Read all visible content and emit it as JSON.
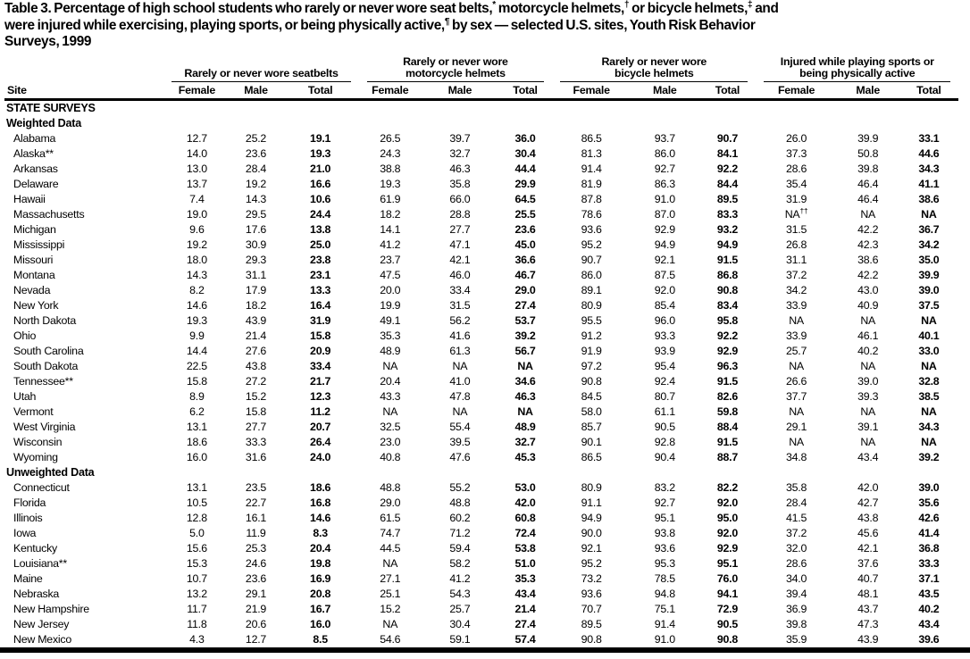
{
  "page": {
    "title_segments": [
      {
        "text": "Table 3. Percentage of high school students who rarely or never wore seat belts,"
      },
      {
        "sup": "*"
      },
      {
        "text": " motorcycle helmets,"
      },
      {
        "sup": "†"
      },
      {
        "text": " or bicycle helmets,"
      },
      {
        "sup": "‡"
      },
      {
        "text": " and"
      },
      {
        "br": true
      },
      {
        "text": "were injured while exercising, playing sports, or being physically active,"
      },
      {
        "sup": "¶"
      },
      {
        "text": " by sex — selected U.S. sites, Youth Risk Behavior"
      },
      {
        "br": true
      },
      {
        "text": "Surveys, 1999"
      }
    ]
  },
  "table": {
    "site_header": "Site",
    "column_groups": [
      {
        "lines": [
          "Rarely or never wore seatbelts"
        ]
      },
      {
        "lines": [
          "Rarely or never wore",
          "motorcycle helmets"
        ]
      },
      {
        "lines": [
          "Rarely or never wore",
          "bicycle helmets"
        ]
      },
      {
        "lines": [
          "Injured while playing sports or",
          "being physically active"
        ]
      }
    ],
    "sub_headers": [
      "Female",
      "Male",
      "Total"
    ],
    "rows": [
      {
        "type": "section",
        "label": "STATE SURVEYS"
      },
      {
        "type": "section",
        "label": "Weighted Data"
      },
      {
        "type": "data",
        "site": "Alabama",
        "values": [
          "12.7",
          "25.2",
          "19.1",
          "26.5",
          "39.7",
          "36.0",
          "86.5",
          "93.7",
          "90.7",
          "26.0",
          "39.9",
          "33.1"
        ]
      },
      {
        "type": "data",
        "site": "Alaska**",
        "values": [
          "14.0",
          "23.6",
          "19.3",
          "24.3",
          "32.7",
          "30.4",
          "81.3",
          "86.0",
          "84.1",
          "37.3",
          "50.8",
          "44.6"
        ]
      },
      {
        "type": "data",
        "site": "Arkansas",
        "values": [
          "13.0",
          "28.4",
          "21.0",
          "38.8",
          "46.3",
          "44.4",
          "91.4",
          "92.7",
          "92.2",
          "28.6",
          "39.8",
          "34.3"
        ]
      },
      {
        "type": "data",
        "site": "Delaware",
        "values": [
          "13.7",
          "19.2",
          "16.6",
          "19.3",
          "35.8",
          "29.9",
          "81.9",
          "86.3",
          "84.4",
          "35.4",
          "46.4",
          "41.1"
        ]
      },
      {
        "type": "data",
        "site": "Hawaii",
        "values": [
          "7.4",
          "14.3",
          "10.6",
          "61.9",
          "66.0",
          "64.5",
          "87.8",
          "91.0",
          "89.5",
          "31.9",
          "46.4",
          "38.6"
        ]
      },
      {
        "type": "data",
        "site": "Massachusetts",
        "values": [
          "19.0",
          "29.5",
          "24.4",
          "18.2",
          "28.8",
          "25.5",
          "78.6",
          "87.0",
          "83.3",
          "NA††",
          "NA",
          "NA"
        ]
      },
      {
        "type": "data",
        "site": "Michigan",
        "values": [
          "9.6",
          "17.6",
          "13.8",
          "14.1",
          "27.7",
          "23.6",
          "93.6",
          "92.9",
          "93.2",
          "31.5",
          "42.2",
          "36.7"
        ]
      },
      {
        "type": "data",
        "site": "Mississippi",
        "values": [
          "19.2",
          "30.9",
          "25.0",
          "41.2",
          "47.1",
          "45.0",
          "95.2",
          "94.9",
          "94.9",
          "26.8",
          "42.3",
          "34.2"
        ]
      },
      {
        "type": "data",
        "site": "Missouri",
        "values": [
          "18.0",
          "29.3",
          "23.8",
          "23.7",
          "42.1",
          "36.6",
          "90.7",
          "92.1",
          "91.5",
          "31.1",
          "38.6",
          "35.0"
        ]
      },
      {
        "type": "data",
        "site": "Montana",
        "values": [
          "14.3",
          "31.1",
          "23.1",
          "47.5",
          "46.0",
          "46.7",
          "86.0",
          "87.5",
          "86.8",
          "37.2",
          "42.2",
          "39.9"
        ]
      },
      {
        "type": "data",
        "site": "Nevada",
        "values": [
          "8.2",
          "17.9",
          "13.3",
          "20.0",
          "33.4",
          "29.0",
          "89.1",
          "92.0",
          "90.8",
          "34.2",
          "43.0",
          "39.0"
        ]
      },
      {
        "type": "data",
        "site": "New York",
        "values": [
          "14.6",
          "18.2",
          "16.4",
          "19.9",
          "31.5",
          "27.4",
          "80.9",
          "85.4",
          "83.4",
          "33.9",
          "40.9",
          "37.5"
        ]
      },
      {
        "type": "data",
        "site": "North Dakota",
        "values": [
          "19.3",
          "43.9",
          "31.9",
          "49.1",
          "56.2",
          "53.7",
          "95.5",
          "96.0",
          "95.8",
          "NA",
          "NA",
          "NA"
        ]
      },
      {
        "type": "data",
        "site": "Ohio",
        "values": [
          "9.9",
          "21.4",
          "15.8",
          "35.3",
          "41.6",
          "39.2",
          "91.2",
          "93.3",
          "92.2",
          "33.9",
          "46.1",
          "40.1"
        ]
      },
      {
        "type": "data",
        "site": "South Carolina",
        "values": [
          "14.4",
          "27.6",
          "20.9",
          "48.9",
          "61.3",
          "56.7",
          "91.9",
          "93.9",
          "92.9",
          "25.7",
          "40.2",
          "33.0"
        ]
      },
      {
        "type": "data",
        "site": "South Dakota",
        "values": [
          "22.5",
          "43.8",
          "33.4",
          "NA",
          "NA",
          "NA",
          "97.2",
          "95.4",
          "96.3",
          "NA",
          "NA",
          "NA"
        ]
      },
      {
        "type": "data",
        "site": "Tennessee**",
        "values": [
          "15.8",
          "27.2",
          "21.7",
          "20.4",
          "41.0",
          "34.6",
          "90.8",
          "92.4",
          "91.5",
          "26.6",
          "39.0",
          "32.8"
        ]
      },
      {
        "type": "data",
        "site": "Utah",
        "values": [
          "8.9",
          "15.2",
          "12.3",
          "43.3",
          "47.8",
          "46.3",
          "84.5",
          "80.7",
          "82.6",
          "37.7",
          "39.3",
          "38.5"
        ]
      },
      {
        "type": "data",
        "site": "Vermont",
        "values": [
          "6.2",
          "15.8",
          "11.2",
          "NA",
          "NA",
          "NA",
          "58.0",
          "61.1",
          "59.8",
          "NA",
          "NA",
          "NA"
        ]
      },
      {
        "type": "data",
        "site": "West Virginia",
        "values": [
          "13.1",
          "27.7",
          "20.7",
          "32.5",
          "55.4",
          "48.9",
          "85.7",
          "90.5",
          "88.4",
          "29.1",
          "39.1",
          "34.3"
        ]
      },
      {
        "type": "data",
        "site": "Wisconsin",
        "values": [
          "18.6",
          "33.3",
          "26.4",
          "23.0",
          "39.5",
          "32.7",
          "90.1",
          "92.8",
          "91.5",
          "NA",
          "NA",
          "NA"
        ]
      },
      {
        "type": "data",
        "site": "Wyoming",
        "values": [
          "16.0",
          "31.6",
          "24.0",
          "40.8",
          "47.6",
          "45.3",
          "86.5",
          "90.4",
          "88.7",
          "34.8",
          "43.4",
          "39.2"
        ]
      },
      {
        "type": "section",
        "label": "Unweighted Data"
      },
      {
        "type": "data",
        "site": "Connecticut",
        "values": [
          "13.1",
          "23.5",
          "18.6",
          "48.8",
          "55.2",
          "53.0",
          "80.9",
          "83.2",
          "82.2",
          "35.8",
          "42.0",
          "39.0"
        ]
      },
      {
        "type": "data",
        "site": "Florida",
        "values": [
          "10.5",
          "22.7",
          "16.8",
          "29.0",
          "48.8",
          "42.0",
          "91.1",
          "92.7",
          "92.0",
          "28.4",
          "42.7",
          "35.6"
        ]
      },
      {
        "type": "data",
        "site": "Illinois",
        "values": [
          "12.8",
          "16.1",
          "14.6",
          "61.5",
          "60.2",
          "60.8",
          "94.9",
          "95.1",
          "95.0",
          "41.5",
          "43.8",
          "42.6"
        ]
      },
      {
        "type": "data",
        "site": "Iowa",
        "values": [
          "5.0",
          "11.9",
          "8.3",
          "74.7",
          "71.2",
          "72.4",
          "90.0",
          "93.8",
          "92.0",
          "37.2",
          "45.6",
          "41.4"
        ]
      },
      {
        "type": "data",
        "site": "Kentucky",
        "values": [
          "15.6",
          "25.3",
          "20.4",
          "44.5",
          "59.4",
          "53.8",
          "92.1",
          "93.6",
          "92.9",
          "32.0",
          "42.1",
          "36.8"
        ]
      },
      {
        "type": "data",
        "site": "Louisiana**",
        "values": [
          "15.3",
          "24.6",
          "19.8",
          "NA",
          "58.2",
          "51.0",
          "95.2",
          "95.3",
          "95.1",
          "28.6",
          "37.6",
          "33.3"
        ]
      },
      {
        "type": "data",
        "site": "Maine",
        "values": [
          "10.7",
          "23.6",
          "16.9",
          "27.1",
          "41.2",
          "35.3",
          "73.2",
          "78.5",
          "76.0",
          "34.0",
          "40.7",
          "37.1"
        ]
      },
      {
        "type": "data",
        "site": "Nebraska",
        "values": [
          "13.2",
          "29.1",
          "20.8",
          "25.1",
          "54.3",
          "43.4",
          "93.6",
          "94.8",
          "94.1",
          "39.4",
          "48.1",
          "43.5"
        ]
      },
      {
        "type": "data",
        "site": "New Hampshire",
        "values": [
          "11.7",
          "21.9",
          "16.7",
          "15.2",
          "25.7",
          "21.4",
          "70.7",
          "75.1",
          "72.9",
          "36.9",
          "43.7",
          "40.2"
        ]
      },
      {
        "type": "data",
        "site": "New Jersey",
        "values": [
          "11.8",
          "20.6",
          "16.0",
          "NA",
          "30.4",
          "27.4",
          "89.5",
          "91.4",
          "90.5",
          "39.8",
          "47.3",
          "43.4"
        ]
      },
      {
        "type": "data",
        "site": "New Mexico",
        "values": [
          "4.3",
          "12.7",
          "8.5",
          "54.6",
          "59.1",
          "57.4",
          "90.8",
          "91.0",
          "90.8",
          "35.9",
          "43.9",
          "39.6"
        ]
      }
    ]
  }
}
